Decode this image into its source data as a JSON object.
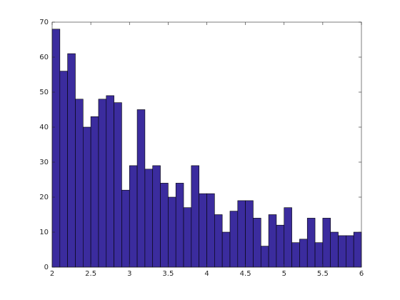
{
  "chart_data": {
    "type": "histogram",
    "bins": [
      2,
      2.1,
      2.2,
      2.3,
      2.4,
      2.5,
      2.6,
      2.7,
      2.8,
      2.9,
      3,
      3.1,
      3.2,
      3.3,
      3.4,
      3.5,
      3.6,
      3.7,
      3.8,
      3.9,
      4,
      4.1,
      4.2,
      4.3,
      4.4,
      4.5,
      4.6,
      4.7,
      4.8,
      4.9,
      5,
      5.1,
      5.2,
      5.3,
      5.4,
      5.5,
      5.6,
      5.7,
      5.8,
      5.9,
      6
    ],
    "values": [
      68,
      56,
      61,
      48,
      40,
      43,
      48,
      49,
      47,
      22,
      29,
      45,
      28,
      29,
      24,
      20,
      24,
      17,
      29,
      21,
      21,
      15,
      10,
      16,
      19,
      19,
      14,
      6,
      15,
      12,
      17,
      7,
      8,
      14,
      7,
      14,
      10,
      9,
      9,
      10
    ],
    "color": "#3b2c9e",
    "xlim": [
      2,
      6
    ],
    "xticks": [
      2,
      2.5,
      3,
      3.5,
      4,
      4.5,
      5,
      5.5,
      6
    ],
    "ylim": [
      0,
      70
    ],
    "yticks": [
      0,
      10,
      20,
      30,
      40,
      50,
      60,
      70
    ]
  }
}
